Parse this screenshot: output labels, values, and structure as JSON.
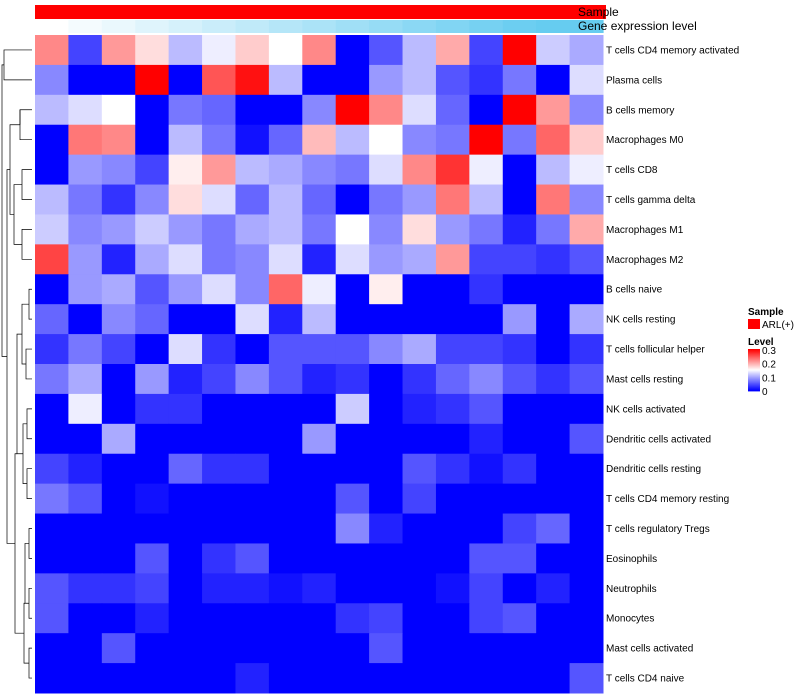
{
  "chart_data": {
    "type": "heatmap",
    "title": "",
    "annotation_tracks": [
      {
        "label": "Sample",
        "color": "#ff0000"
      },
      {
        "label": "Gene expression level",
        "gradient": [
          "#ffffff",
          "#66ccf0"
        ]
      }
    ],
    "rows": [
      "T cells CD4 memory activated",
      "Plasma cells",
      "B cells memory",
      "Macrophages M0",
      "T cells CD8",
      "T cells gamma delta",
      "Macrophages M1",
      "Macrophages M2",
      "B cells naive",
      "NK cells resting",
      "T cells follicular helper",
      "Mast cells resting",
      "NK cells activated",
      "Dendritic cells activated",
      "Dendritic cells resting",
      "T cells CD4 memory resting",
      "T cells regulatory  Tregs",
      "Eosinophils",
      "Neutrophils",
      "Monocytes",
      "Mast cells activated",
      "T cells CD4 naive"
    ],
    "column_count": 17,
    "values": [
      [
        0.22,
        0.04,
        0.21,
        0.17,
        0.11,
        0.14,
        0.18,
        0.15,
        0.22,
        0.0,
        0.05,
        0.11,
        0.2,
        0.04,
        0.3,
        0.12,
        0.1
      ],
      [
        0.08,
        0.0,
        0.0,
        0.3,
        0.0,
        0.25,
        0.29,
        0.11,
        0.0,
        0.0,
        0.09,
        0.11,
        0.05,
        0.03,
        0.07,
        0.0,
        0.13
      ],
      [
        0.11,
        0.13,
        0.15,
        0.0,
        0.07,
        0.06,
        0.0,
        0.0,
        0.08,
        0.3,
        0.22,
        0.13,
        0.06,
        0.0,
        0.3,
        0.21,
        0.08
      ],
      [
        0.0,
        0.23,
        0.22,
        0.0,
        0.11,
        0.07,
        0.01,
        0.06,
        0.19,
        0.11,
        0.15,
        0.08,
        0.07,
        0.3,
        0.07,
        0.24,
        0.18
      ],
      [
        0.0,
        0.09,
        0.08,
        0.04,
        0.16,
        0.21,
        0.11,
        0.1,
        0.08,
        0.07,
        0.13,
        0.22,
        0.27,
        0.14,
        0.0,
        0.11,
        0.14
      ],
      [
        0.11,
        0.07,
        0.03,
        0.08,
        0.17,
        0.13,
        0.06,
        0.11,
        0.06,
        0.0,
        0.07,
        0.09,
        0.23,
        0.11,
        0.0,
        0.23,
        0.08
      ],
      [
        0.12,
        0.08,
        0.09,
        0.12,
        0.09,
        0.07,
        0.1,
        0.11,
        0.07,
        0.15,
        0.08,
        0.17,
        0.09,
        0.07,
        0.02,
        0.07,
        0.2
      ],
      [
        0.26,
        0.09,
        0.02,
        0.1,
        0.13,
        0.07,
        0.08,
        0.13,
        0.02,
        0.13,
        0.09,
        0.1,
        0.21,
        0.04,
        0.04,
        0.03,
        0.05
      ],
      [
        0.0,
        0.09,
        0.1,
        0.05,
        0.09,
        0.13,
        0.08,
        0.24,
        0.14,
        0.0,
        0.16,
        0.0,
        0.0,
        0.03,
        0.0,
        0.0,
        0.0
      ],
      [
        0.06,
        0.0,
        0.08,
        0.06,
        0.0,
        0.0,
        0.13,
        0.02,
        0.11,
        0.0,
        0.0,
        0.0,
        0.0,
        0.0,
        0.09,
        0.0,
        0.1
      ],
      [
        0.03,
        0.07,
        0.04,
        0.0,
        0.13,
        0.03,
        0.0,
        0.05,
        0.05,
        0.05,
        0.08,
        0.1,
        0.04,
        0.04,
        0.03,
        0.0,
        0.03
      ],
      [
        0.07,
        0.1,
        0.0,
        0.09,
        0.02,
        0.04,
        0.08,
        0.05,
        0.02,
        0.03,
        0.0,
        0.03,
        0.06,
        0.08,
        0.05,
        0.03,
        0.05
      ],
      [
        0.0,
        0.14,
        0.0,
        0.03,
        0.03,
        0.0,
        0.0,
        0.0,
        0.0,
        0.12,
        0.0,
        0.02,
        0.03,
        0.05,
        0.0,
        0.0,
        0.0
      ],
      [
        0.0,
        0.0,
        0.1,
        0.0,
        0.0,
        0.0,
        0.0,
        0.0,
        0.09,
        0.0,
        0.0,
        0.0,
        0.0,
        0.02,
        0.0,
        0.0,
        0.05
      ],
      [
        0.04,
        0.02,
        0.0,
        0.0,
        0.06,
        0.03,
        0.03,
        0.0,
        0.0,
        0.0,
        0.0,
        0.05,
        0.03,
        0.01,
        0.03,
        0.0,
        0.0
      ],
      [
        0.07,
        0.05,
        0.0,
        0.01,
        0.0,
        0.0,
        0.0,
        0.0,
        0.0,
        0.05,
        0.0,
        0.04,
        0.0,
        0.0,
        0.0,
        0.0,
        0.0
      ],
      [
        0.0,
        0.0,
        0.0,
        0.0,
        0.0,
        0.0,
        0.0,
        0.0,
        0.0,
        0.08,
        0.02,
        0.0,
        0.0,
        0.0,
        0.04,
        0.06,
        0.0
      ],
      [
        0.0,
        0.0,
        0.0,
        0.05,
        0.0,
        0.03,
        0.05,
        0.0,
        0.0,
        0.0,
        0.0,
        0.0,
        0.0,
        0.05,
        0.05,
        0.0,
        0.0
      ],
      [
        0.05,
        0.03,
        0.03,
        0.04,
        0.0,
        0.02,
        0.02,
        0.01,
        0.02,
        0.0,
        0.0,
        0.0,
        0.01,
        0.04,
        0.0,
        0.02,
        0.0
      ],
      [
        0.05,
        0.0,
        0.0,
        0.02,
        0.0,
        0.0,
        0.0,
        0.0,
        0.0,
        0.03,
        0.04,
        0.0,
        0.0,
        0.04,
        0.05,
        0.0,
        0.0
      ],
      [
        0.0,
        0.0,
        0.05,
        0.0,
        0.0,
        0.0,
        0.0,
        0.0,
        0.0,
        0.0,
        0.05,
        0.0,
        0.0,
        0.0,
        0.0,
        0.0,
        0.0
      ],
      [
        0.0,
        0.0,
        0.0,
        0.0,
        0.0,
        0.0,
        0.02,
        0.0,
        0.0,
        0.0,
        0.0,
        0.0,
        0.0,
        0.0,
        0.0,
        0.0,
        0.05
      ]
    ],
    "color_scale": {
      "min": 0,
      "mid": 0.15,
      "max": 0.3,
      "colors": [
        "#0000ff",
        "#ffffff",
        "#ff0000"
      ]
    },
    "legend": {
      "sample_title": "Sample",
      "sample_entry": "ARL(+)",
      "sample_color": "#ff0000",
      "level_title": "Level",
      "level_ticks": [
        "0.3",
        "0.2",
        "0.1",
        "0"
      ]
    },
    "dendrogram": "row-clustering (left side)"
  }
}
